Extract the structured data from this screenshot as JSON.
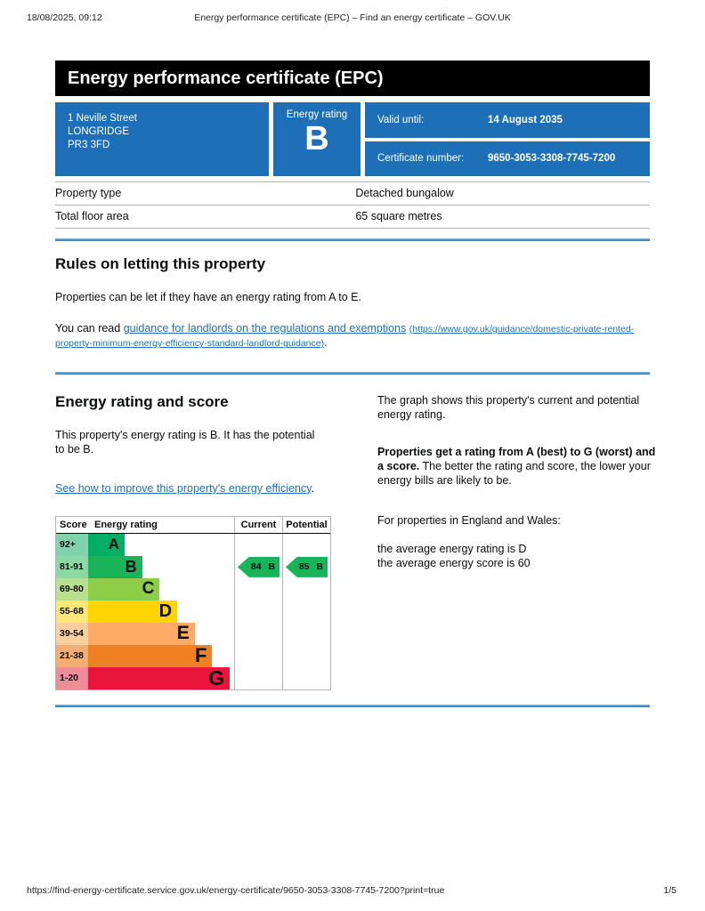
{
  "print_header": {
    "timestamp": "18/08/2025, 09:12",
    "title": "Energy performance certificate (EPC) – Find an energy certificate – GOV.UK"
  },
  "banner": {
    "title": "Energy performance certificate (EPC)"
  },
  "summary": {
    "address_lines": [
      "1 Neville Street",
      "LONGRIDGE",
      "PR3 3FD"
    ],
    "energy_rating_label": "Energy rating",
    "energy_rating_value": "B",
    "valid_until_label": "Valid until:",
    "valid_until_value": "14 August 2035",
    "certificate_number_label": "Certificate number:",
    "certificate_number_value": "9650-3053-3308-7745-7200"
  },
  "property_table": {
    "rows": [
      {
        "label": "Property type",
        "value": "Detached bungalow"
      },
      {
        "label": "Total floor area",
        "value": "65 square metres"
      }
    ]
  },
  "letting_rules": {
    "heading": "Rules on letting this property",
    "paragraph": "Properties can be let if they have an energy rating from A to E.",
    "link_intro": "You can read ",
    "link_text": "guidance for landlords on the regulations and exemptions",
    "link_url_text": "(https://www.gov.uk/guidance/domestic-private-rented-property-minimum-energy-efficiency-standard-landlord-guidance)",
    "link_suffix": "."
  },
  "rating_section": {
    "heading": "Energy rating and score",
    "paragraph": "This property's energy rating is B. It has the potential to be B.",
    "improve_link_text": "See how to improve this property's energy efficiency",
    "improve_link_suffix": ".",
    "right_para_1": "The graph shows this property's current and potential energy rating.",
    "right_para_2_bold": "Properties get a rating from A (best) to G (worst) and a score.",
    "right_para_2_rest": " The better the rating and score, the lower your energy bills are likely to be.",
    "right_para_3": "For properties in England and Wales:",
    "right_para_4_line1": "the average energy rating is D",
    "right_para_4_line2": "the average energy score is 60"
  },
  "chart_data": {
    "type": "epc-rating-bar",
    "columns": [
      "Score",
      "Energy rating",
      "Current",
      "Potential"
    ],
    "bands": [
      {
        "score": "92+",
        "letter": "A",
        "color": "#02ad66",
        "tint": "#81d3ad",
        "width_pct": 25
      },
      {
        "score": "81-91",
        "letter": "B",
        "color": "#19b459",
        "tint": "#8cd9a5",
        "width_pct": 37
      },
      {
        "score": "69-80",
        "letter": "C",
        "color": "#8dce46",
        "tint": "#b9e08f",
        "width_pct": 49
      },
      {
        "score": "55-68",
        "letter": "D",
        "color": "#ffd500",
        "tint": "#ffe878",
        "width_pct": 61
      },
      {
        "score": "39-54",
        "letter": "E",
        "color": "#fcaa65",
        "tint": "#fccf9f",
        "width_pct": 73
      },
      {
        "score": "21-38",
        "letter": "F",
        "color": "#ef8023",
        "tint": "#f3ae74",
        "width_pct": 85
      },
      {
        "score": "1-20",
        "letter": "G",
        "color": "#e9153b",
        "tint": "#f18a99",
        "width_pct": 97
      }
    ],
    "current": {
      "score": "84",
      "band": "B",
      "row_index": 1,
      "color": "#19b459"
    },
    "potential": {
      "score": "85",
      "band": "B",
      "row_index": 1,
      "color": "#19b459"
    }
  },
  "footer": {
    "url": "https://find-energy-certificate.service.gov.uk/energy-certificate/9650-3053-3308-7745-7200?print=true",
    "page": "1/5"
  },
  "colors": {
    "govuk_blue": "#1d70b8",
    "link_blue": "#1d70b8",
    "banner_black": "#000000",
    "rule_blue": "#2d74ac",
    "table_border_grey": "#b1b4b6"
  }
}
